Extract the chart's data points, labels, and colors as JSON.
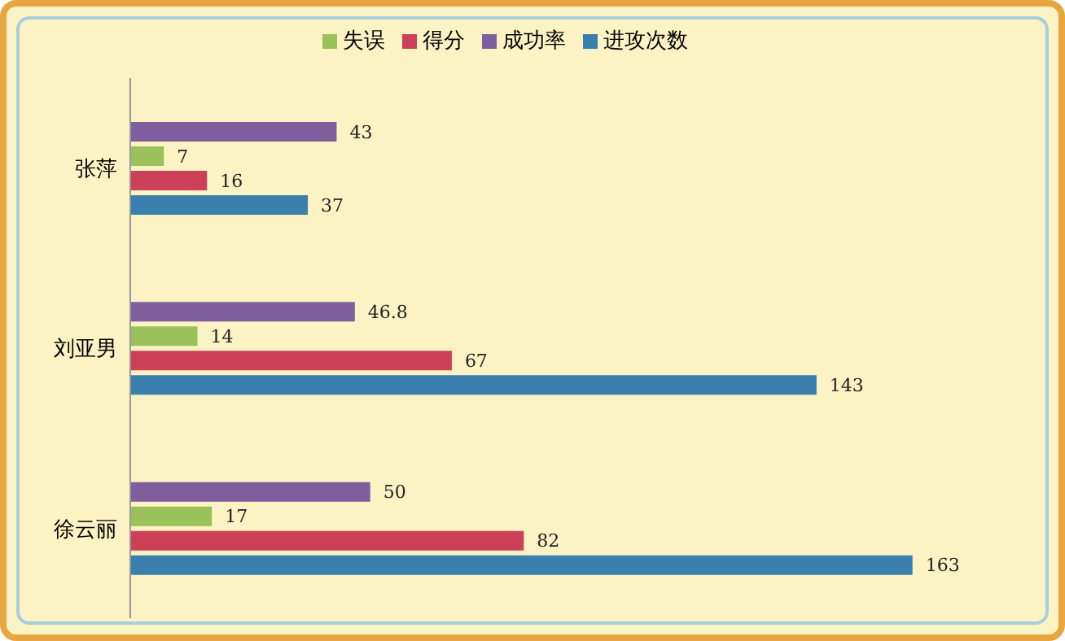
{
  "chart_data": {
    "type": "bar",
    "orientation": "horizontal",
    "categories": [
      "张萍",
      "刘亚男",
      "徐云丽"
    ],
    "series": [
      {
        "name": "成功率",
        "color": "#7f5f9e",
        "values": [
          43,
          46.8,
          50
        ]
      },
      {
        "name": "失误",
        "color": "#9bc15a",
        "values": [
          7,
          14,
          17
        ]
      },
      {
        "name": "得分",
        "color": "#cc4058",
        "values": [
          16,
          67,
          82
        ]
      },
      {
        "name": "进攻次数",
        "color": "#3a7fae",
        "values": [
          37,
          143,
          163
        ]
      }
    ],
    "data_labels": true,
    "legend": "top",
    "grid": false
  }
}
